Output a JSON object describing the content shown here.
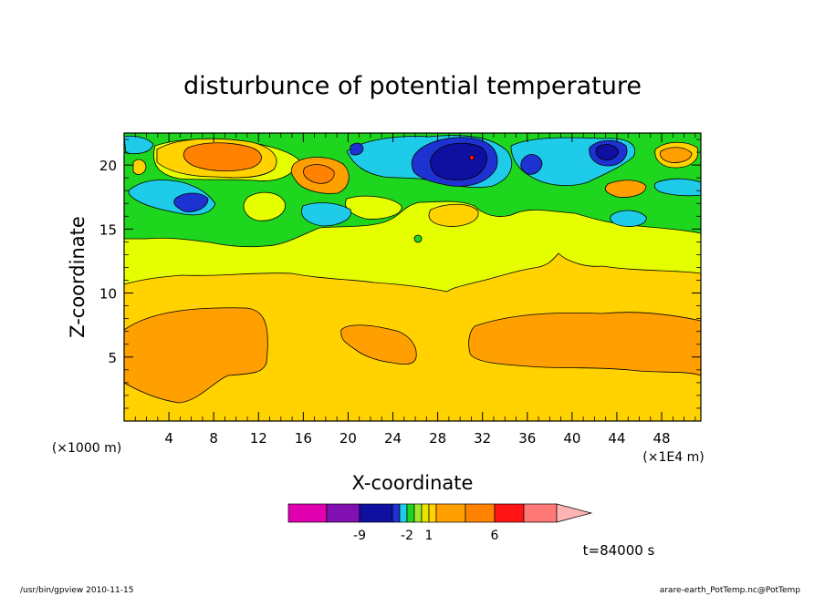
{
  "chart_data": {
    "type": "heatmap",
    "title": "disturbunce of potential temperature",
    "xlabel": "X-coordinate",
    "ylabel": "Z-coordinate",
    "x_unit_left": "(×1000 m)",
    "x_unit_right": "(×1E4 m)",
    "x_ticks": [
      4,
      8,
      12,
      16,
      20,
      24,
      28,
      32,
      36,
      40,
      44,
      48
    ],
    "y_ticks": [
      5,
      10,
      15,
      20
    ],
    "xlim": [
      0,
      51.5
    ],
    "ylim": [
      0,
      22.5
    ],
    "time_label": "t=84000 s",
    "colorbar": {
      "tick_labels": [
        {
          "label": "-9",
          "index": 1
        },
        {
          "label": "-2",
          "index": 4
        },
        {
          "label": "1",
          "index": 7
        },
        {
          "label": "6",
          "index": 10
        }
      ],
      "colors": [
        "#e000b0",
        "#8010b0",
        "#1010a0",
        "#1e32d2",
        "#1ecbe8",
        "#1ed61e",
        "#a0e632",
        "#e6e600",
        "#ffd200",
        "#ffa000",
        "#ff8200",
        "#ff1414",
        "#ff7878",
        "#ffb4b4"
      ]
    }
  },
  "footer": {
    "left": "/usr/bin/gpview   2010-11-15",
    "right": "arare-earth_PotTemp.nc@PotTemp"
  },
  "colors": {
    "bg": "#ffd200",
    "orange": "#ffa000",
    "deep_orange": "#ff8200",
    "red_orange": "#ff6400",
    "yellow": "#e6ff00",
    "green": "#1ed61e",
    "cyan": "#1ecbe8",
    "blue": "#1e32d2",
    "navy": "#1010a0"
  }
}
